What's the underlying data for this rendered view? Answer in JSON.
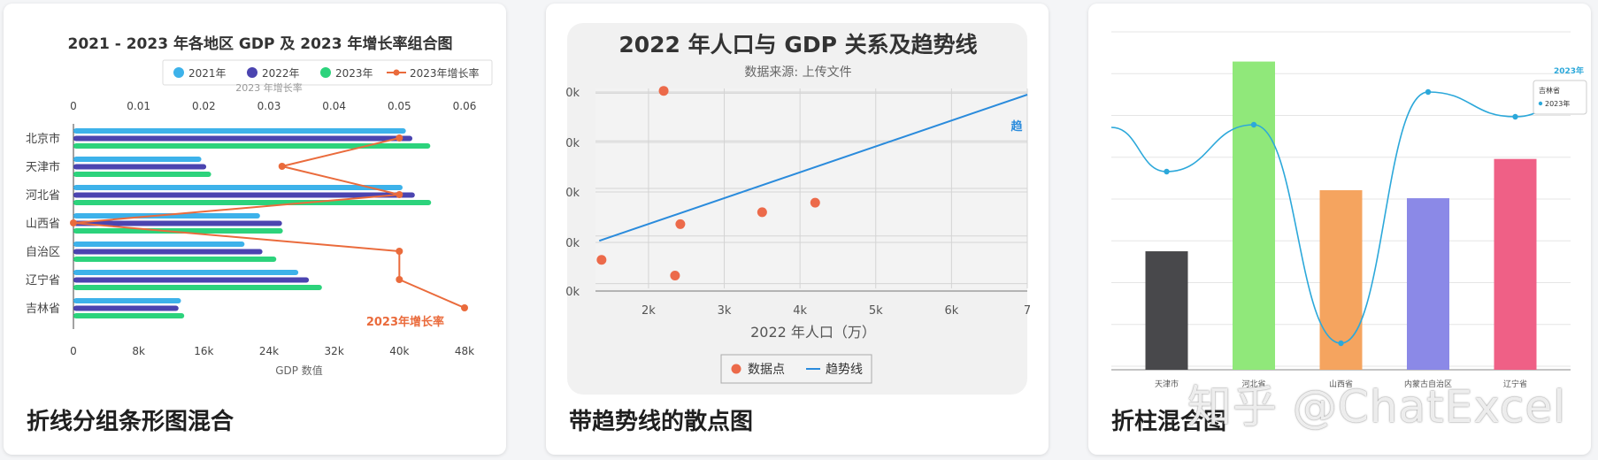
{
  "cards": [
    {
      "caption": "折线分组条形图混合",
      "chart_data": {
        "type": "bar",
        "orientation": "horizontal",
        "title": "2021 - 2023 年各地区 GDP 及 2023 年增长率组合图",
        "categories": [
          "北京市",
          "天津市",
          "河北省",
          "山西省",
          "自治区",
          "辽宁省",
          "吉林省"
        ],
        "series": [
          {
            "name": "2021年",
            "color": "#3db2ea",
            "values": [
              40800,
              15700,
              40400,
              22900,
              21000,
              27600,
              13200
            ]
          },
          {
            "name": "2022年",
            "color": "#4b44b0",
            "values": [
              41600,
              16300,
              41900,
              25600,
              23200,
              28900,
              12900
            ]
          },
          {
            "name": "2023年",
            "color": "#2cd37c",
            "values": [
              43800,
              16900,
              43900,
              25700,
              24900,
              30500,
              13600
            ]
          }
        ],
        "line_series": {
          "name": "2023年增长率",
          "color": "#ea6b3c",
          "label": "2023年增长率",
          "values": [
            0.05,
            0.032,
            0.05,
            0,
            0.05,
            0.05,
            0.06
          ]
        },
        "xlabel": "GDP 数值",
        "xlim": [
          0,
          48000
        ],
        "xticks": [
          "0",
          "8k",
          "16k",
          "24k",
          "32k",
          "40k",
          "48k"
        ],
        "top_axis_title": "2023 年增长率",
        "top_xlim": [
          0,
          0.06
        ],
        "top_ticks": [
          "0",
          "0.01",
          "0.02",
          "0.03",
          "0.04",
          "0.05",
          "0.06"
        ],
        "legend_position": "top"
      }
    },
    {
      "caption": "带趋势线的散点图",
      "chart_data": {
        "type": "scatter",
        "title": "2022 年人口与 GDP 关系及趋势线",
        "subtitle": "数据来源: 上传文件",
        "xlabel": "2022 年人口（万）",
        "xlim": [
          1300,
          7000
        ],
        "ylim": [
          9000,
          51000
        ],
        "xticks": [
          "2k",
          "3k",
          "4k",
          "5k",
          "6k",
          "7"
        ],
        "yticks": [
          "0k",
          "0k",
          "0k",
          "0k",
          "0k",
          "0k"
        ],
        "ytick_values": [
          10000,
          20000,
          30000,
          40000,
          50000,
          60000
        ],
        "points": [
          {
            "x": 1380,
            "y": 15000
          },
          {
            "x": 2200,
            "y": 50500
          },
          {
            "x": 2350,
            "y": 11700
          },
          {
            "x": 2420,
            "y": 22500
          },
          {
            "x": 3500,
            "y": 25000
          },
          {
            "x": 4200,
            "y": 27000
          }
        ],
        "trendline": {
          "x": [
            1350,
            7000
          ],
          "y": [
            19000,
            49700
          ]
        },
        "trend_label": "趋",
        "legend": [
          "数据点",
          "趋势线"
        ],
        "legend_position": "bottom",
        "colors": {
          "points": "#ec6a4a",
          "trend": "#2a8bdc"
        }
      }
    },
    {
      "caption": "折柱混合图",
      "chart_data": {
        "type": "bar",
        "categories": [
          "天津市",
          "河北省",
          "山西省",
          "内蒙古自治区",
          "辽宁省",
          "吉林省"
        ],
        "visible_category_labels": [
          "天津市",
          "河北省",
          "山西省",
          "内蒙古自治区",
          "辽宁省"
        ],
        "bars": [
          {
            "category": "天津市",
            "value": 16300,
            "color": "#48484b"
          },
          {
            "category": "河北省",
            "value": 42400,
            "color": "#90e87a"
          },
          {
            "category": "山西省",
            "value": 24700,
            "color": "#f5a45f"
          },
          {
            "category": "内蒙古自治区",
            "value": 23600,
            "color": "#8b89e7"
          },
          {
            "category": "辽宁省",
            "value": 29000,
            "color": "#ef6086"
          }
        ],
        "line": {
          "name": "2023年增长率",
          "color": "#2ca8da",
          "values": [
            0.061,
            0.072,
            0.012,
            0.078,
            0.07,
            0.073
          ]
        },
        "ylim": [
          0,
          46000
        ],
        "y2lim": [
          0,
          0.1
        ],
        "tooltip": {
          "title": "吉林省",
          "series": "2023年"
        },
        "line_label": "2023年",
        "colors": {
          "line": "#2ca8da"
        }
      }
    }
  ],
  "watermark": "知乎 @ChatExcel"
}
